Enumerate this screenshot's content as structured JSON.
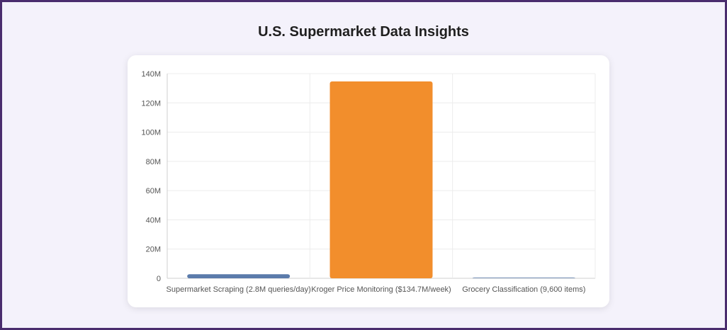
{
  "page": {
    "title": "U.S. Supermarket Data Insights"
  },
  "chart_data": {
    "type": "bar",
    "title": "",
    "xlabel": "",
    "ylabel": "",
    "categories": [
      "Supermarket Scraping (2.8M queries/day)",
      "Kroger Price Monitoring ($134.7M/week)",
      "Grocery Classification (9,600 items)"
    ],
    "values": [
      2800000,
      134700000,
      9600
    ],
    "colors": [
      "#5b7bab",
      "#f28e2c",
      "#8aa0c0"
    ],
    "ylim": [
      0,
      140000000
    ],
    "yticks": [
      {
        "value": 0,
        "label": "0"
      },
      {
        "value": 20000000,
        "label": "20M"
      },
      {
        "value": 40000000,
        "label": "40M"
      },
      {
        "value": 60000000,
        "label": "60M"
      },
      {
        "value": 80000000,
        "label": "80M"
      },
      {
        "value": 100000000,
        "label": "100M"
      },
      {
        "value": 120000000,
        "label": "120M"
      },
      {
        "value": 140000000,
        "label": "140M"
      }
    ],
    "grid": true,
    "legend": "none"
  }
}
